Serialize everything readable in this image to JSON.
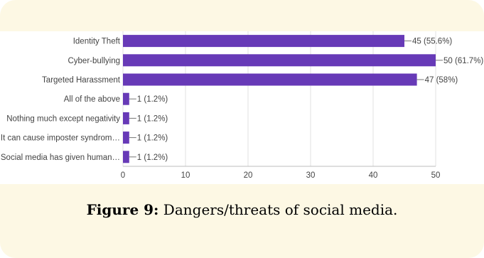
{
  "chart_data": {
    "type": "bar",
    "orientation": "horizontal",
    "categories": [
      "Identity Theft",
      "Cyber-bullying",
      "Targeted Harassment",
      "All of the above",
      "Nothing much except negativity",
      "It can cause imposter syndrom…",
      "Social media has given human…"
    ],
    "values": [
      45,
      50,
      47,
      1,
      1,
      1,
      1
    ],
    "data_labels": [
      "45 (55.6%)",
      "50 (61.7%)",
      "47 (58%)",
      "1 (1.2%)",
      "1 (1.2%)",
      "1 (1.2%)",
      "1 (1.2%)"
    ],
    "xlim": [
      0,
      50
    ],
    "xticks": [
      "0",
      "10",
      "20",
      "30",
      "40",
      "50"
    ],
    "bar_color": "#673ab7",
    "grid": true,
    "legend": "none"
  },
  "caption": {
    "label": "Figure 9:",
    "text": " Dangers/threats of social media."
  },
  "colors": {
    "background": "#fdf8e4",
    "panel": "#ffffff",
    "bar": "#673ab7",
    "grid": "#e0e0e0",
    "text": "#444444"
  }
}
